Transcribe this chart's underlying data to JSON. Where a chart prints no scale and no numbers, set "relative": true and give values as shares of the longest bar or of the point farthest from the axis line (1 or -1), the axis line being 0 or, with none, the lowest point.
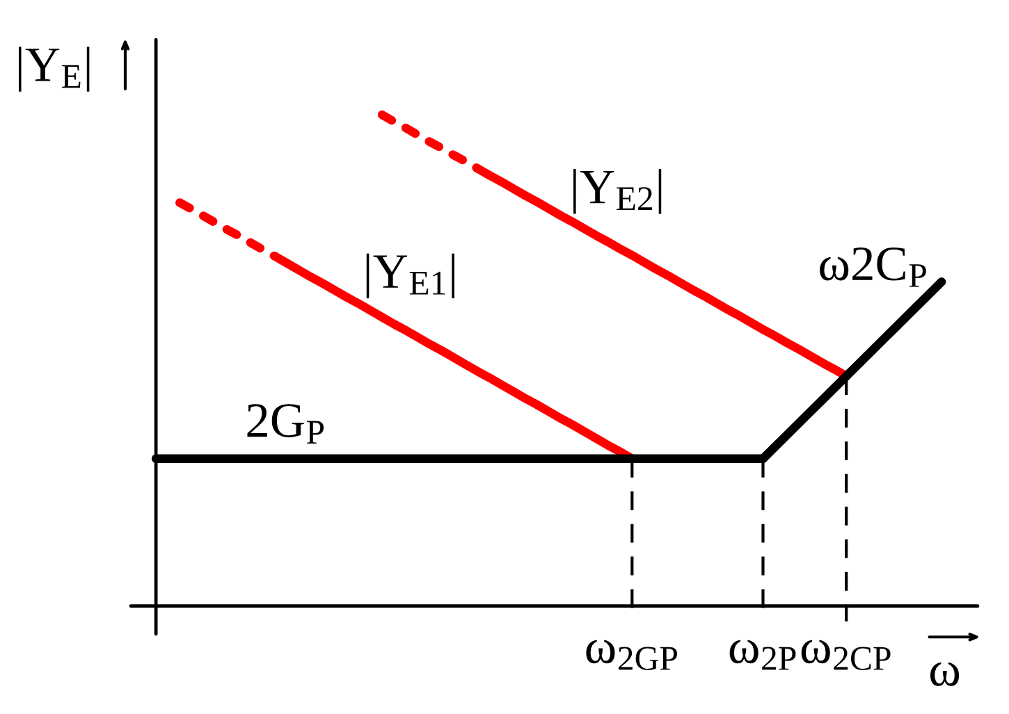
{
  "chart_data": {
    "type": "line",
    "relative": true,
    "xlabel": "ω",
    "ylabel": "|Y$_{E}$|",
    "categories": [
      null,
      null,
      null,
      null,
      null,
      null,
      null,
      null,
      null,
      null,
      null,
      null,
      null,
      null,
      null,
      null,
      null,
      null,
      null,
      null,
      null,
      null,
      null,
      null,
      null,
      null,
      null,
      null,
      null,
      null,
      null,
      null,
      null,
      null,
      null,
      null,
      null,
      null,
      null,
      null,
      "ω$_{2GP}$",
      null,
      null,
      null,
      null,
      null,
      null,
      null,
      null,
      null,
      null,
      "ω$_{2P}$",
      null,
      null,
      null,
      null,
      null,
      null,
      "ω$_{2CP}$",
      null,
      null,
      null,
      null,
      null,
      null,
      null,
      null
    ],
    "series": [
      {
        "color": "#ff0000",
        "line_style": "dashed",
        "values": [
          null,
          null,
          0.821,
          0.808,
          0.794,
          0.78,
          0.766,
          0.753,
          0.739,
          0.725,
          0.712,
          null,
          null,
          null,
          null,
          null,
          null,
          null,
          null,
          null,
          null,
          null,
          null,
          null,
          null,
          null,
          null,
          null,
          null,
          null,
          null,
          null,
          null,
          null,
          null,
          null,
          null,
          null,
          null,
          null,
          null,
          null,
          null,
          null,
          null,
          null,
          null,
          null,
          null,
          null,
          null,
          null,
          null,
          null,
          null,
          null,
          null,
          null,
          null,
          null,
          null,
          null,
          null,
          null,
          null,
          null,
          null
        ]
      },
      {
        "name": "|Y$_{E1}$|",
        "color": "#ff0000",
        "values": [
          null,
          null,
          null,
          null,
          null,
          null,
          null,
          null,
          null,
          null,
          0.712,
          0.698,
          0.684,
          0.67,
          0.657,
          0.643,
          0.629,
          0.616,
          0.602,
          0.588,
          0.574,
          0.561,
          0.547,
          0.533,
          0.52,
          0.506,
          0.492,
          0.478,
          0.465,
          0.451,
          0.437,
          0.423,
          0.41,
          0.396,
          0.382,
          0.369,
          0.355,
          0.341,
          0.327,
          0.314,
          0.3,
          null,
          null,
          null,
          null,
          null,
          null,
          null,
          null,
          null,
          null,
          null,
          null,
          null,
          null,
          null,
          null,
          null,
          null,
          null,
          null,
          null,
          null,
          null,
          null,
          null,
          null
        ]
      },
      {
        "color": "#ff0000",
        "line_style": "dashed",
        "values": [
          null,
          null,
          null,
          null,
          null,
          null,
          null,
          null,
          null,
          null,
          null,
          null,
          null,
          null,
          null,
          null,
          null,
          null,
          null,
          1.0,
          0.986,
          0.973,
          0.959,
          0.945,
          0.932,
          0.918,
          0.905,
          0.891,
          null,
          null,
          null,
          null,
          null,
          null,
          null,
          null,
          null,
          null,
          null,
          null,
          null,
          null,
          null,
          null,
          null,
          null,
          null,
          null,
          null,
          null,
          null,
          null,
          null,
          null,
          null,
          null,
          null,
          null,
          null,
          null,
          null,
          null,
          null,
          null,
          null,
          null,
          null
        ]
      },
      {
        "name": "|Y$_{E2}$|",
        "color": "#ff0000",
        "values": [
          null,
          null,
          null,
          null,
          null,
          null,
          null,
          null,
          null,
          null,
          null,
          null,
          null,
          null,
          null,
          null,
          null,
          null,
          null,
          null,
          null,
          null,
          null,
          null,
          null,
          null,
          null,
          0.891,
          0.877,
          0.864,
          0.85,
          0.836,
          0.823,
          0.809,
          0.795,
          0.782,
          0.768,
          0.754,
          0.741,
          0.727,
          0.714,
          0.7,
          0.686,
          0.673,
          0.659,
          0.645,
          0.632,
          0.618,
          0.604,
          0.591,
          0.577,
          0.563,
          0.55,
          0.536,
          0.523,
          0.509,
          0.495,
          0.482,
          0.468,
          null,
          null,
          null,
          null,
          null,
          null,
          null,
          null
        ]
      },
      {
        "name": "2G$_{P}$",
        "color": "#000000",
        "values": [
          0.3,
          0.3,
          0.3,
          0.3,
          0.3,
          0.3,
          0.3,
          0.3,
          0.3,
          0.3,
          0.3,
          0.3,
          0.3,
          0.3,
          0.3,
          0.3,
          0.3,
          0.3,
          0.3,
          0.3,
          0.3,
          0.3,
          0.3,
          0.3,
          0.3,
          0.3,
          0.3,
          0.3,
          0.3,
          0.3,
          0.3,
          0.3,
          0.3,
          0.3,
          0.3,
          0.3,
          0.3,
          0.3,
          0.3,
          0.3,
          0.3,
          0.3,
          0.3,
          0.3,
          0.3,
          0.3,
          0.3,
          0.3,
          0.3,
          0.3,
          0.3,
          0.3,
          null,
          null,
          null,
          null,
          null,
          null,
          null,
          null,
          null,
          null,
          null,
          null,
          null,
          null,
          null
        ]
      },
      {
        "name": "ω2C$_{P}$",
        "color": "#000000",
        "values": [
          null,
          null,
          null,
          null,
          null,
          null,
          null,
          null,
          null,
          null,
          null,
          null,
          null,
          null,
          null,
          null,
          null,
          null,
          null,
          null,
          null,
          null,
          null,
          null,
          null,
          null,
          null,
          null,
          null,
          null,
          null,
          null,
          null,
          null,
          null,
          null,
          null,
          null,
          null,
          null,
          null,
          null,
          null,
          null,
          null,
          null,
          null,
          null,
          null,
          null,
          null,
          0.3,
          0.324,
          0.348,
          0.372,
          0.396,
          0.42,
          0.444,
          0.468,
          0.492,
          0.516,
          0.54,
          0.564,
          0.588,
          0.612,
          0.636,
          0.66
        ]
      }
    ],
    "ref_lines": [
      {
        "axis": "x",
        "value": "ω$_{2GP}$",
        "color": "#000000",
        "line_style": "dashed"
      },
      {
        "axis": "x",
        "value": "ω$_{2P}$",
        "color": "#000000",
        "line_style": "dashed"
      },
      {
        "axis": "x",
        "value": "ω$_{2CP}$",
        "color": "#000000",
        "line_style": "dashed"
      }
    ]
  }
}
